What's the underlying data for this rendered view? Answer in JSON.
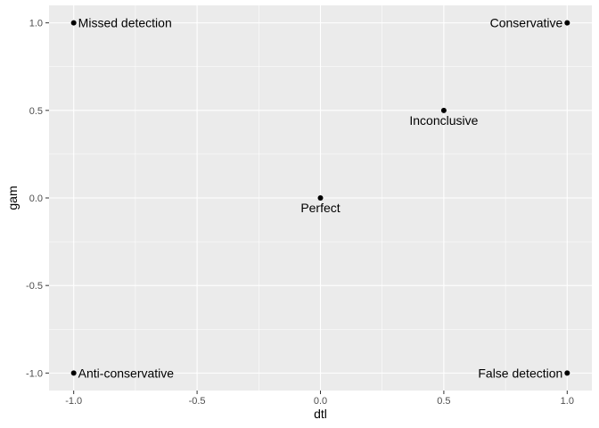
{
  "chart_data": {
    "type": "scatter",
    "xlabel": "dtl",
    "ylabel": "gam",
    "xlim": [
      -1.1,
      1.1
    ],
    "ylim": [
      -1.1,
      1.1
    ],
    "x_ticks": [
      -1.0,
      -0.5,
      0.0,
      0.5,
      1.0
    ],
    "y_ticks": [
      -1.0,
      -0.5,
      0.0,
      0.5,
      1.0
    ],
    "x_tick_labels": [
      "-1.0",
      "-0.5",
      "0.0",
      "0.5",
      "1.0"
    ],
    "y_tick_labels": [
      "-1.0",
      "-0.5",
      "0.0",
      "0.5",
      "1.0"
    ],
    "grid": true,
    "background": "#ebebeb",
    "grid_color": "#ffffff",
    "point_color": "#000000",
    "points": [
      {
        "x": -1.0,
        "y": 1.0,
        "label": "Missed detection"
      },
      {
        "x": 1.0,
        "y": 1.0,
        "label": "Conservative"
      },
      {
        "x": 0.5,
        "y": 0.5,
        "label": "Inconclusive"
      },
      {
        "x": 0.0,
        "y": 0.0,
        "label": "Perfect"
      },
      {
        "x": -1.0,
        "y": -1.0,
        "label": "Anti-conservative"
      },
      {
        "x": 1.0,
        "y": -1.0,
        "label": "False detection"
      }
    ]
  }
}
